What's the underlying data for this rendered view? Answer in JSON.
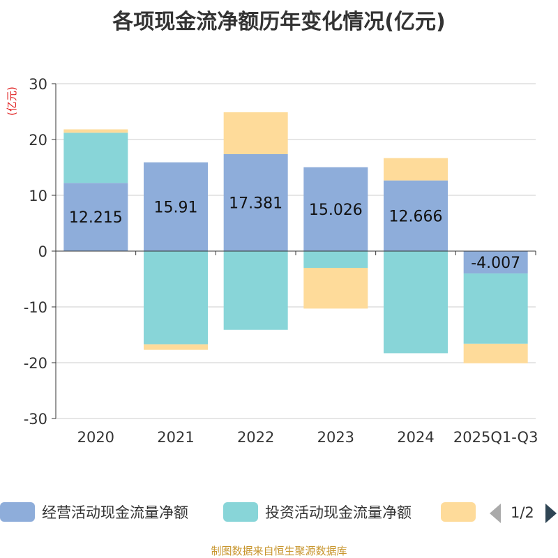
{
  "title": "各项现金流净额历年变化情况(亿元)",
  "source": "制图数据来自恒生聚源数据库",
  "legend": {
    "items": [
      {
        "label": "经营活动现金流量净额",
        "color": "#8eadda"
      },
      {
        "label": "投资活动现金流量净额",
        "color": "#88d5d8"
      },
      {
        "label": "",
        "color": "#fedb9a"
      }
    ],
    "pager": "1/2"
  },
  "chart_data": {
    "type": "bar",
    "stacked": true,
    "ylabel": "(亿元)",
    "ylim": [
      -30,
      30
    ],
    "yticks": [
      30,
      20,
      10,
      0,
      -10,
      -20,
      -30
    ],
    "grid": true,
    "legend_position": "bottom",
    "categories": [
      "2020",
      "2021",
      "2022",
      "2023",
      "2024",
      "2025Q1-Q3"
    ],
    "series": [
      {
        "name": "经营活动现金流量净额",
        "color": "#8eadda",
        "values": [
          12.215,
          15.91,
          17.381,
          15.026,
          12.666,
          -4.007
        ],
        "labels": [
          "12.215",
          "15.91",
          "17.381",
          "15.026",
          "12.666",
          "-4.007"
        ]
      },
      {
        "name": "投资活动现金流量净额",
        "color": "#88d5d8",
        "values": [
          9.0,
          -16.7,
          -14.1,
          -3.0,
          -18.3,
          -12.6
        ]
      },
      {
        "name": "",
        "color": "#fedb9a",
        "values": [
          0.6,
          -1.0,
          7.5,
          -7.3,
          4.0,
          -3.5
        ]
      }
    ]
  }
}
